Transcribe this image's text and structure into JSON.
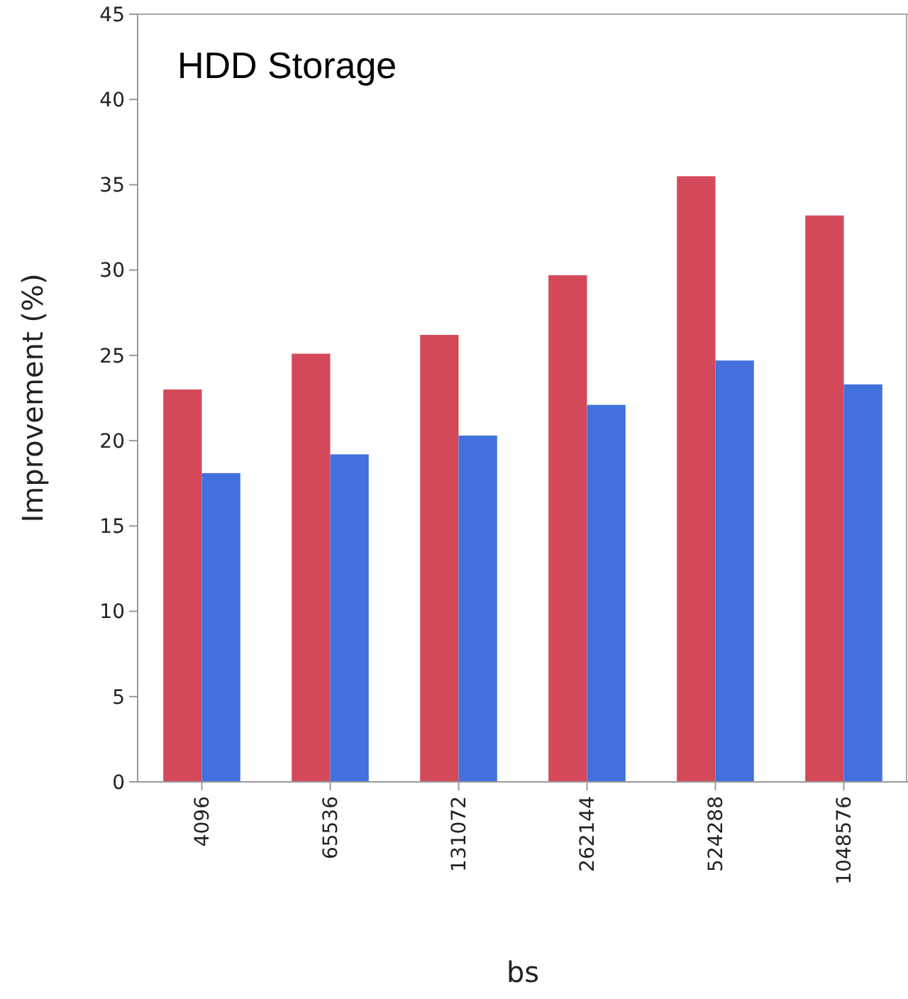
{
  "chart_data": {
    "type": "bar",
    "title": "HDD Storage",
    "xlabel": "bs",
    "ylabel": "Improvement (%)",
    "categories": [
      "4096",
      "65536",
      "131072",
      "262144",
      "524288",
      "1048576"
    ],
    "series": [
      {
        "color": "#d4495a",
        "values": [
          23.0,
          25.1,
          26.2,
          29.7,
          35.5,
          33.2
        ]
      },
      {
        "color": "#4270dc",
        "values": [
          18.1,
          19.2,
          20.3,
          22.1,
          24.7,
          23.3
        ]
      }
    ],
    "ylim": [
      0,
      45
    ],
    "yticks": [
      0,
      5,
      10,
      15,
      20,
      25,
      30,
      35,
      40,
      45
    ],
    "grid": false
  }
}
